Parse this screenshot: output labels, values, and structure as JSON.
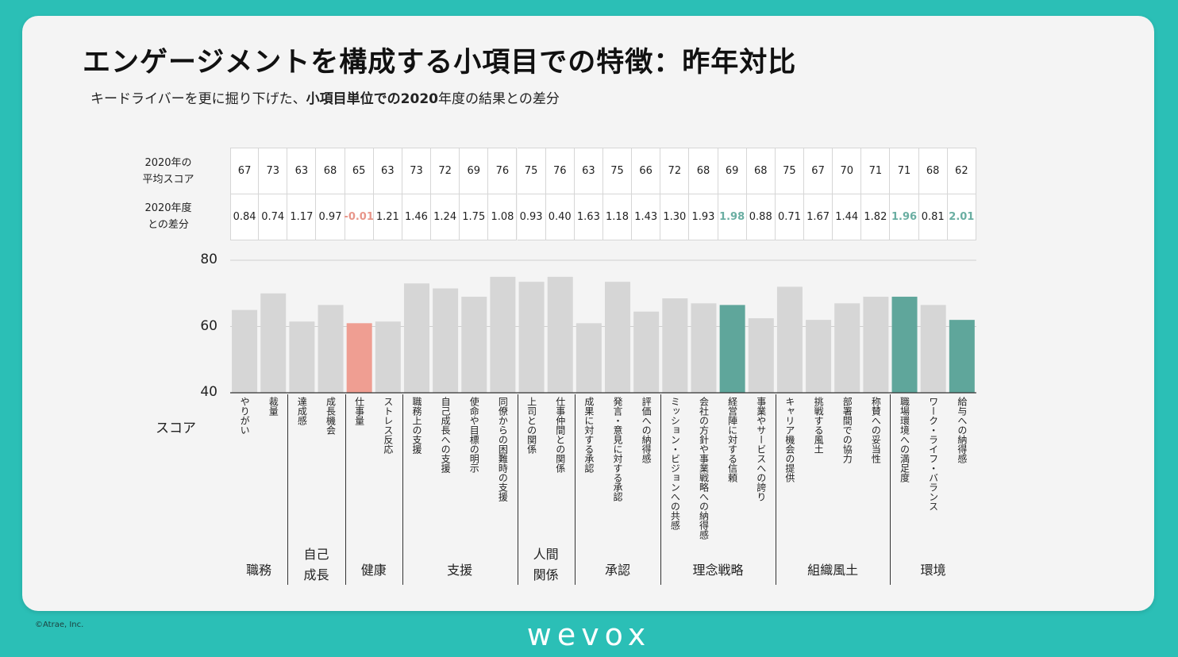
{
  "header": {
    "title": "エンゲージメントを構成する小項目での特徴：昨年対比",
    "subtitle_prefix": "キードライバーを更に掘り下げた、",
    "subtitle_bold": "小項目単位での2020",
    "subtitle_suffix": "年度の結果との差分"
  },
  "table": {
    "row1_label": [
      "2020年の",
      "平均スコア"
    ],
    "row2_label": [
      "2020年度",
      "との差分"
    ]
  },
  "score_axis_label": "スコア",
  "colors": {
    "default_bar": "#d6d6d6",
    "decline_bar": "#ef9e92",
    "top_bar": "#5fa69b",
    "decline_text": "#e8968a",
    "top_text": "#6aaea2"
  },
  "chart_data": {
    "type": "bar",
    "ylim": [
      40,
      80
    ],
    "yticks": [
      40,
      60,
      80
    ],
    "ylabel": "スコア",
    "grid": true,
    "categories": [
      "やりがい",
      "裁量",
      "達成感",
      "成長機会",
      "仕事量",
      "ストレス反応",
      "職務上の支援",
      "自己成長への支援",
      "使命や目標の明示",
      "同僚からの困難時の支援",
      "上司との関係",
      "仕事仲間との関係",
      "成果に対する承認",
      "発言・意見に対する承認",
      "評価への納得感",
      "ミッション・ビジョンへの共感",
      "会社の方針や事業戦略への納得感",
      "経営陣に対する信頼",
      "事業やサービスへの誇り",
      "キャリア機会の提供",
      "挑戦する風土",
      "部署間での協力",
      "称賛への妥当性",
      "職場環境への満足度",
      "ワーク・ライフ・バランス",
      "給与への納得感"
    ],
    "avg_2020": [
      67,
      73,
      63,
      68,
      65,
      63,
      73,
      72,
      69,
      76,
      75,
      76,
      63,
      75,
      66,
      72,
      68,
      69,
      68,
      75,
      67,
      70,
      71,
      71,
      68,
      62
    ],
    "diff": [
      "0.84",
      "0.74",
      "1.17",
      "0.97",
      "-0.01",
      "1.21",
      "1.46",
      "1.24",
      "1.75",
      "1.08",
      "0.93",
      "0.40",
      "1.63",
      "1.18",
      "1.43",
      "1.30",
      "1.93",
      "1.98",
      "0.88",
      "0.71",
      "1.67",
      "1.44",
      "1.82",
      "1.96",
      "0.81",
      "2.01"
    ],
    "values": [
      65,
      70,
      61.5,
      66.5,
      61,
      61.5,
      73,
      71.5,
      69,
      75,
      73.5,
      75,
      61,
      73.5,
      64.5,
      68.5,
      67,
      66.5,
      62.5,
      72,
      62,
      67,
      69,
      69,
      66.5,
      62
    ],
    "highlight": [
      "",
      "",
      "",
      "",
      "decline",
      "",
      "",
      "",
      "",
      "",
      "",
      "",
      "",
      "",
      "",
      "",
      "",
      "top",
      "",
      "",
      "",
      "",
      "",
      "top",
      "",
      "top"
    ],
    "groups": [
      {
        "name": "職務",
        "span": 2
      },
      {
        "name": "自己\n成長",
        "span": 2
      },
      {
        "name": "健康",
        "span": 2
      },
      {
        "name": "支援",
        "span": 4
      },
      {
        "name": "人間\n関係",
        "span": 2
      },
      {
        "name": "承認",
        "span": 3
      },
      {
        "name": "理念戦略",
        "span": 4
      },
      {
        "name": "組織風土",
        "span": 4
      },
      {
        "name": "環境",
        "span": 3
      }
    ]
  },
  "footer": {
    "copyright": "©Atrae, Inc.",
    "logo": "wevox"
  }
}
